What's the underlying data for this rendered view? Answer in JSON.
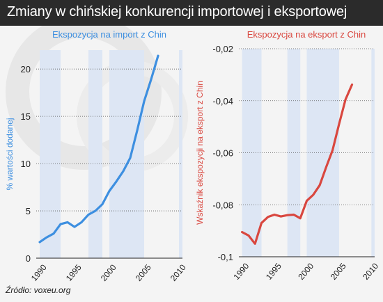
{
  "header": {
    "title": "Zmiany w chińskiej konkurencji importowej i eksportowej"
  },
  "footer": {
    "source": "Źródło: voxeu.org"
  },
  "chart_data": [
    {
      "type": "line",
      "title": "Ekspozycja na import z Chin",
      "xlabel": "",
      "ylabel": "% wartości dodanej",
      "xlim": [
        1989.5,
        2010.5
      ],
      "ylim": [
        0,
        22
      ],
      "xticks": [
        1990,
        1995,
        2000,
        2005,
        2010
      ],
      "xtick_labels": [
        "1990",
        "1995",
        "2000",
        "2005",
        "2010"
      ],
      "yticks": [
        0,
        5,
        10,
        15,
        20
      ],
      "ytick_labels": [
        "0",
        "5",
        "10",
        "15",
        "20"
      ],
      "grid": "horizontal dotted",
      "shaded_bands": [
        [
          1990,
          1993
        ],
        [
          1997,
          1999
        ],
        [
          2000,
          2005
        ],
        [
          2010,
          2010.5
        ]
      ],
      "colors": {
        "line": "#3d8fe0",
        "band": "#dde6f4",
        "title": "#3d8fe0",
        "ylabel": "#3d8fe0"
      },
      "series": [
        {
          "x": [
            1990,
            1991,
            1992,
            1993,
            1994,
            1995,
            1996,
            1997,
            1998,
            1999,
            2000,
            2001,
            2002,
            2003,
            2004,
            2005,
            2006,
            2007
          ],
          "y": [
            1.7,
            2.2,
            2.6,
            3.6,
            3.8,
            3.3,
            3.8,
            4.6,
            5.0,
            5.7,
            7.1,
            8.1,
            9.2,
            10.6,
            13.5,
            16.6,
            18.9,
            21.4
          ]
        }
      ]
    },
    {
      "type": "line",
      "title": "Ekspozycja na eksport z Chin",
      "xlabel": "",
      "ylabel": "Wskaźnik ekspozycji na eksport z Chin",
      "xlim": [
        1989.5,
        2010.5
      ],
      "ylim": [
        -0.1,
        -0.02
      ],
      "xticks": [
        1990,
        1995,
        2000,
        2005,
        2010
      ],
      "xtick_labels": [
        "1990",
        "1995",
        "2000",
        "2005",
        "2010"
      ],
      "yticks": [
        -0.1,
        -0.08,
        -0.06,
        -0.04,
        -0.02
      ],
      "ytick_labels": [
        "-0,1",
        "-0,08",
        "-0,06",
        "-0,04",
        "-0,02"
      ],
      "grid": "horizontal dotted",
      "shaded_bands": [
        [
          1990,
          1993
        ],
        [
          1997,
          1999
        ],
        [
          2000,
          2005
        ],
        [
          2010,
          2010.5
        ]
      ],
      "colors": {
        "line": "#d9473f",
        "band": "#dde6f4",
        "title": "#d9473f",
        "ylabel": "#d9473f"
      },
      "series": [
        {
          "x": [
            1990,
            1991,
            1992,
            1993,
            1994,
            1995,
            1996,
            1997,
            1998,
            1999,
            2000,
            2001,
            2002,
            2003,
            2004,
            2005,
            2006,
            2007
          ],
          "y": [
            -0.0905,
            -0.0918,
            -0.095,
            -0.087,
            -0.0847,
            -0.0838,
            -0.0845,
            -0.084,
            -0.0838,
            -0.0852,
            -0.0785,
            -0.0762,
            -0.0725,
            -0.0655,
            -0.059,
            -0.049,
            -0.0395,
            -0.0338
          ]
        }
      ]
    }
  ]
}
